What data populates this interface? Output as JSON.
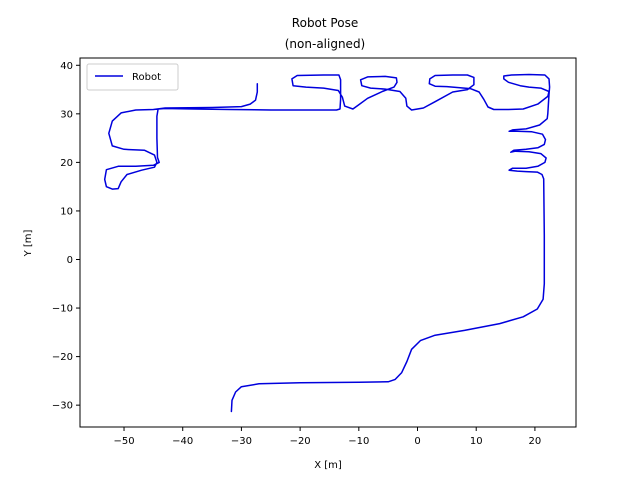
{
  "chart_data": {
    "type": "line",
    "title": "Robot Pose",
    "subtitle": "(non-aligned)",
    "xlabel": "X [m]",
    "ylabel": "Y [m]",
    "xlim": [
      -57.5,
      27
    ],
    "ylim": [
      -34.5,
      41.5
    ],
    "xticks": [
      -50,
      -40,
      -30,
      -20,
      -10,
      0,
      10,
      20
    ],
    "yticks": [
      -30,
      -20,
      -10,
      0,
      10,
      20,
      30,
      40
    ],
    "grid": false,
    "legend": {
      "position": "top-left"
    },
    "series": [
      {
        "name": "Robot",
        "color": "#0000dd",
        "points": [
          [
            -31.7,
            -31.3
          ],
          [
            -31.6,
            -29.0
          ],
          [
            -31.0,
            -27.3
          ],
          [
            -30.0,
            -26.2
          ],
          [
            -27.0,
            -25.6
          ],
          [
            -20.0,
            -25.4
          ],
          [
            -10.0,
            -25.3
          ],
          [
            -5.0,
            -25.2
          ],
          [
            -3.8,
            -24.7
          ],
          [
            -2.7,
            -23.3
          ],
          [
            -1.8,
            -21.0
          ],
          [
            -1.0,
            -18.5
          ],
          [
            0.5,
            -16.7
          ],
          [
            3.0,
            -15.6
          ],
          [
            8.0,
            -14.6
          ],
          [
            14.0,
            -13.2
          ],
          [
            18.0,
            -11.8
          ],
          [
            20.4,
            -10.2
          ],
          [
            21.4,
            -8.2
          ],
          [
            21.6,
            -5.0
          ],
          [
            21.6,
            5.0
          ],
          [
            21.5,
            16.6
          ],
          [
            21.2,
            17.5
          ],
          [
            20.4,
            18.0
          ],
          [
            18.5,
            18.1
          ],
          [
            17.0,
            18.2
          ],
          [
            15.6,
            18.4
          ],
          [
            16.2,
            18.8
          ],
          [
            18.5,
            18.8
          ],
          [
            20.5,
            19.2
          ],
          [
            21.7,
            20.0
          ],
          [
            21.9,
            20.9
          ],
          [
            21.0,
            21.8
          ],
          [
            19.0,
            22.2
          ],
          [
            16.7,
            22.3
          ],
          [
            15.9,
            22.1
          ],
          [
            16.4,
            22.5
          ],
          [
            18.5,
            22.7
          ],
          [
            20.5,
            23.0
          ],
          [
            21.6,
            23.7
          ],
          [
            21.8,
            24.7
          ],
          [
            21.3,
            25.8
          ],
          [
            19.5,
            26.3
          ],
          [
            17.0,
            26.4
          ],
          [
            15.6,
            26.4
          ],
          [
            16.2,
            26.7
          ],
          [
            18.5,
            26.9
          ],
          [
            20.8,
            27.7
          ],
          [
            22.1,
            29.0
          ],
          [
            22.2,
            30.0
          ],
          [
            22.3,
            32.0
          ],
          [
            22.4,
            34.0
          ],
          [
            22.5,
            35.5
          ],
          [
            22.4,
            37.2
          ],
          [
            21.7,
            38.0
          ],
          [
            19.0,
            38.1
          ],
          [
            16.0,
            38.0
          ],
          [
            14.7,
            37.8
          ],
          [
            14.7,
            37.2
          ],
          [
            15.5,
            36.5
          ],
          [
            17.5,
            35.8
          ],
          [
            19.0,
            35.5
          ],
          [
            21.0,
            35.3
          ],
          [
            22.4,
            34.6
          ],
          [
            22.2,
            33.6
          ],
          [
            20.5,
            32.0
          ],
          [
            18.0,
            31.0
          ],
          [
            15.5,
            30.9
          ],
          [
            13.0,
            30.9
          ],
          [
            12.0,
            31.4
          ],
          [
            11.3,
            33.0
          ],
          [
            10.5,
            34.5
          ],
          [
            9.0,
            35.2
          ],
          [
            7.0,
            35.4
          ],
          [
            5.0,
            35.6
          ],
          [
            3.0,
            35.7
          ],
          [
            2.0,
            36.2
          ],
          [
            2.1,
            37.2
          ],
          [
            3.0,
            37.9
          ],
          [
            6.0,
            38.0
          ],
          [
            8.5,
            38.0
          ],
          [
            9.6,
            37.5
          ],
          [
            9.6,
            36.0
          ],
          [
            8.5,
            35.0
          ],
          [
            6.0,
            34.5
          ],
          [
            3.0,
            32.5
          ],
          [
            1.0,
            31.2
          ],
          [
            -1.0,
            30.8
          ],
          [
            -1.8,
            31.6
          ],
          [
            -2.0,
            33.2
          ],
          [
            -3.0,
            34.6
          ],
          [
            -5.5,
            35.1
          ],
          [
            -8.0,
            35.3
          ],
          [
            -9.5,
            35.8
          ],
          [
            -9.7,
            37.0
          ],
          [
            -8.5,
            37.6
          ],
          [
            -5.5,
            37.7
          ],
          [
            -3.6,
            37.4
          ],
          [
            -3.5,
            36.5
          ],
          [
            -4.0,
            35.5
          ],
          [
            -6.0,
            34.6
          ],
          [
            -8.5,
            33.2
          ],
          [
            -10.2,
            31.7
          ],
          [
            -11.0,
            31.0
          ],
          [
            -12.4,
            31.6
          ],
          [
            -12.8,
            33.4
          ],
          [
            -13.5,
            34.8
          ],
          [
            -16.0,
            35.3
          ],
          [
            -19.0,
            35.5
          ],
          [
            -21.2,
            35.8
          ],
          [
            -21.4,
            37.2
          ],
          [
            -20.5,
            37.9
          ],
          [
            -16.0,
            38.0
          ],
          [
            -13.4,
            38.0
          ],
          [
            -13.1,
            37.0
          ],
          [
            -13.1,
            33.0
          ],
          [
            -13.2,
            31.0
          ],
          [
            -13.8,
            30.8
          ],
          [
            -18.0,
            30.8
          ],
          [
            -25.0,
            30.8
          ],
          [
            -32.0,
            30.9
          ],
          [
            -38.0,
            31.0
          ],
          [
            -43.0,
            31.1
          ],
          [
            -44.2,
            31.0
          ],
          [
            -44.4,
            29.5
          ],
          [
            -44.4,
            25.0
          ],
          [
            -44.3,
            21.0
          ],
          [
            -44.0,
            20.0
          ],
          [
            -45.0,
            19.4
          ],
          [
            -48.0,
            19.2
          ],
          [
            -51.0,
            19.2
          ],
          [
            -53.0,
            18.5
          ],
          [
            -53.3,
            16.5
          ],
          [
            -53.0,
            15.0
          ],
          [
            -52.0,
            14.5
          ],
          [
            -51.0,
            14.6
          ],
          [
            -50.5,
            16.0
          ],
          [
            -49.5,
            17.5
          ],
          [
            -47.0,
            18.4
          ],
          [
            -44.8,
            19.0
          ],
          [
            -44.4,
            20.0
          ],
          [
            -44.8,
            21.5
          ],
          [
            -46.5,
            22.5
          ],
          [
            -50.0,
            22.7
          ],
          [
            -52.0,
            23.4
          ],
          [
            -52.6,
            26.0
          ],
          [
            -52.0,
            28.5
          ],
          [
            -50.5,
            30.2
          ],
          [
            -48.0,
            30.8
          ],
          [
            -45.0,
            30.9
          ],
          [
            -43.0,
            31.2
          ],
          [
            -35.0,
            31.3
          ],
          [
            -30.0,
            31.5
          ],
          [
            -28.5,
            32.0
          ],
          [
            -27.6,
            32.8
          ],
          [
            -27.3,
            34.5
          ],
          [
            -27.3,
            36.2
          ]
        ]
      }
    ]
  }
}
